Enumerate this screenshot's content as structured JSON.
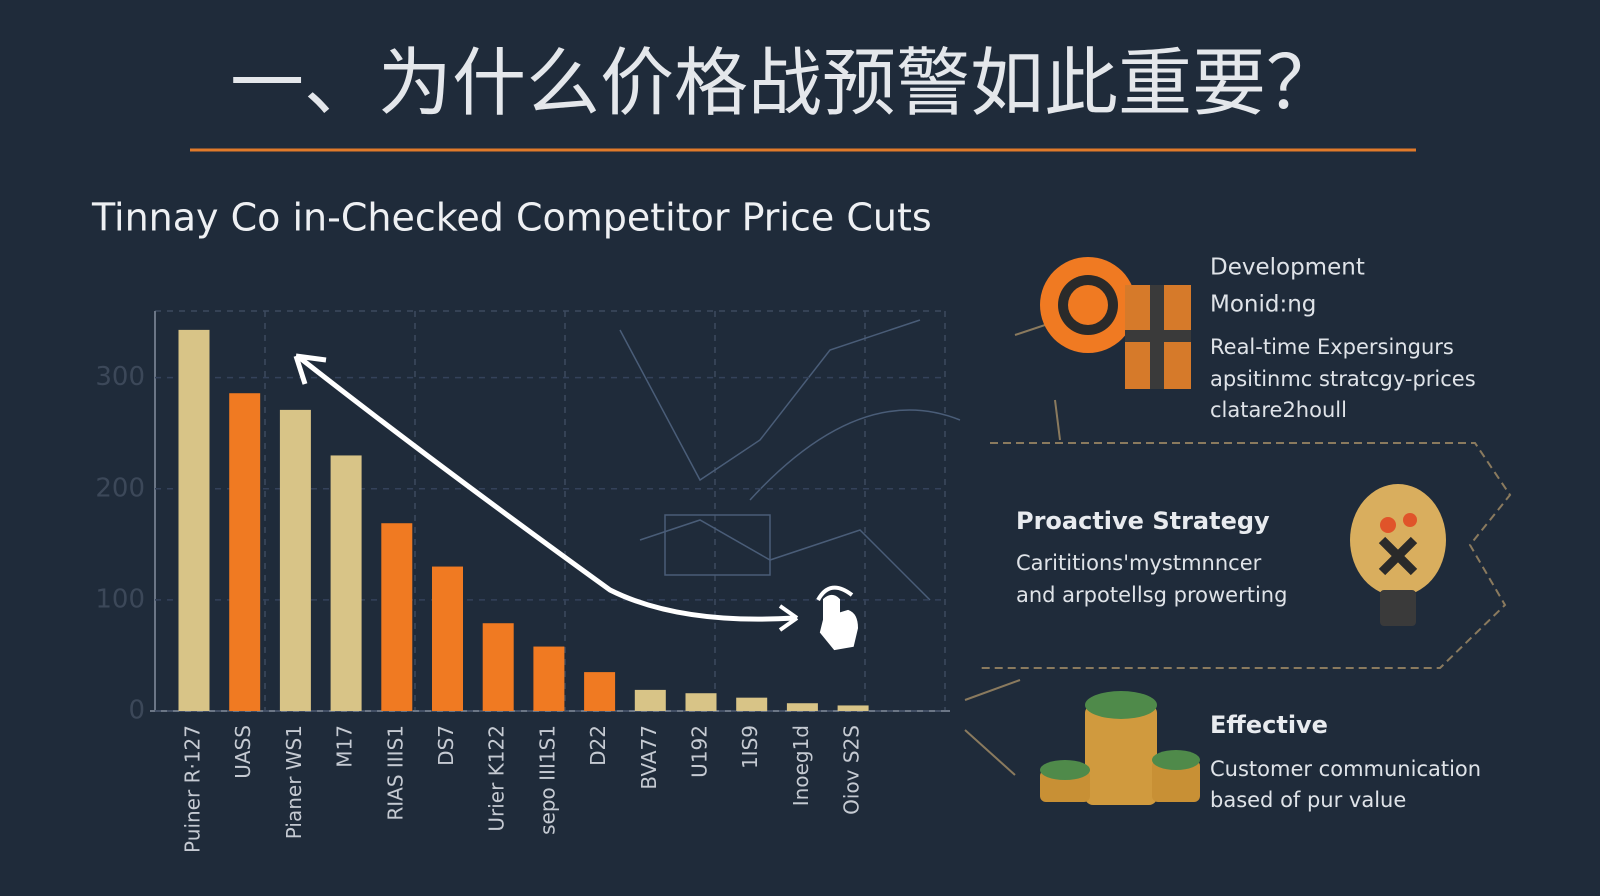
{
  "header": {
    "title": "一、为什么价格战预警如此重要？"
  },
  "chart_data": {
    "type": "bar",
    "title": "Tinnay Co in-Checked Competitor Price Cuts",
    "categories": [
      "Puiner R·127",
      "UASS",
      "Pianer WS1",
      "M17",
      "RIAS IIIS1",
      "DS7",
      "Urier K122",
      "sepo III1S1",
      "D22",
      "BVA77",
      "U192",
      "1IS9",
      "Inoeg1d",
      "Oiov S2S"
    ],
    "values": [
      343,
      286,
      271,
      230,
      169,
      130,
      79,
      58,
      35,
      19,
      16,
      12,
      7,
      5
    ],
    "colors": [
      "#d8c487",
      "#f07a22",
      "#d8c487",
      "#d8c487",
      "#f07a22",
      "#f07a22",
      "#f07a22",
      "#f07a22",
      "#f07a22",
      "#d8c487",
      "#d8c487",
      "#d8c487",
      "#d8c487",
      "#d8c487"
    ],
    "ylim": [
      0,
      360
    ],
    "yticks": [
      0,
      100,
      200,
      300
    ],
    "grid": true
  },
  "panels": [
    {
      "title": "Development",
      "subtitle": "Monid:ng",
      "lines": [
        "Real-time Expersingurs",
        "apsitinmc stratcgy-prices",
        "clatare2houll"
      ]
    },
    {
      "title": "Proactive Strategy",
      "lines": [
        "Carititions'mystmnncer",
        "and arpotellsg prowerting"
      ]
    },
    {
      "title": "Effective",
      "lines": [
        "Customer communication",
        "based of pur value"
      ]
    }
  ]
}
